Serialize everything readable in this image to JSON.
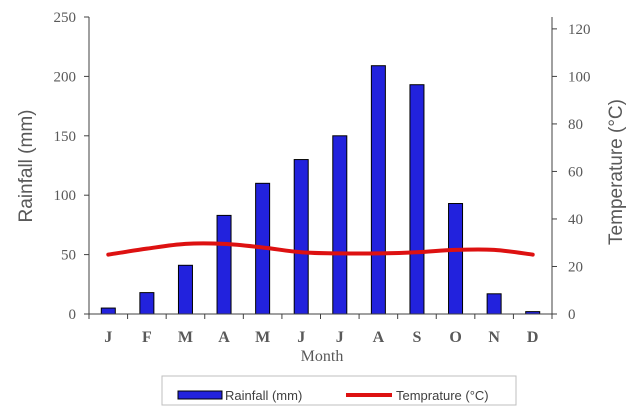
{
  "chart_data": {
    "type": "bar",
    "categories": [
      "J",
      "F",
      "M",
      "A",
      "M",
      "J",
      "J",
      "A",
      "S",
      "O",
      "N",
      "D"
    ],
    "series": [
      {
        "name": "Rainfall (mm)",
        "type": "bar",
        "axis": "left",
        "color": "#2222dd",
        "values": [
          5,
          18,
          41,
          83,
          110,
          130,
          150,
          209,
          193,
          93,
          17,
          2
        ]
      },
      {
        "name": "Temprature (°C)",
        "type": "line",
        "axis": "right",
        "color": "#dd1111",
        "values": [
          25,
          27.5,
          29.5,
          29.5,
          28,
          26,
          25.5,
          25.5,
          26,
          27,
          27,
          25
        ]
      }
    ],
    "xlabel": "Month",
    "ylabel": "Rainfall (mm)",
    "y2label": "Temperature (°C)",
    "ylim": [
      0,
      250
    ],
    "y2lim": [
      0,
      125
    ],
    "yticks": [
      "0",
      "50",
      "100",
      "150",
      "200",
      "250"
    ],
    "y2ticks": [
      "0",
      "20",
      "40",
      "60",
      "80",
      "100",
      "120"
    ],
    "legend_position": "bottom",
    "grid": false
  }
}
